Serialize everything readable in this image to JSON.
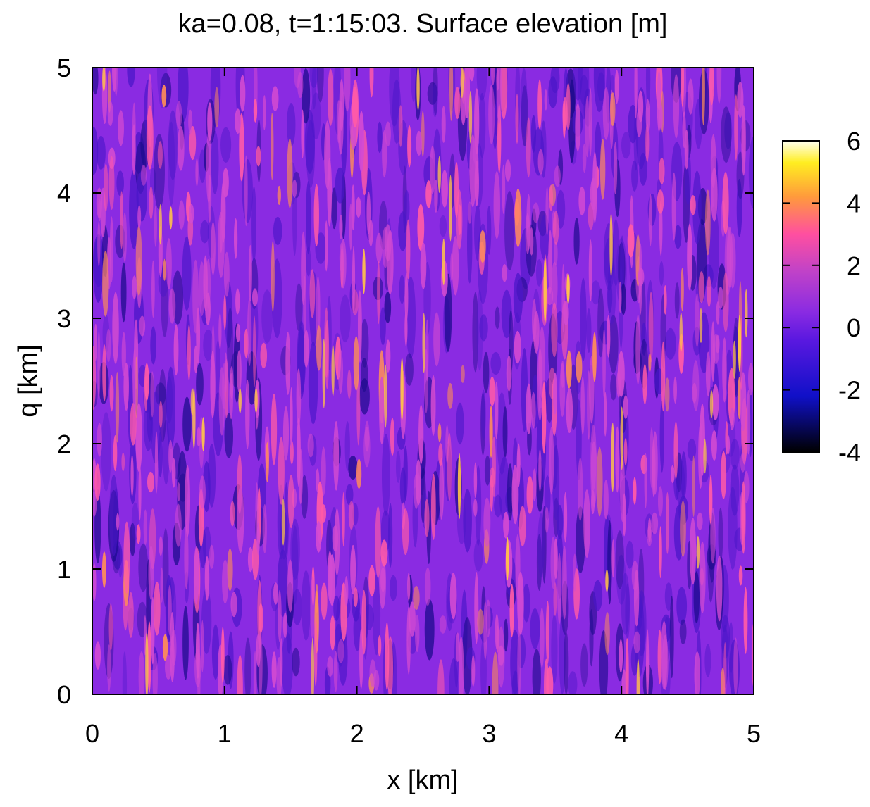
{
  "chart_data": {
    "type": "heatmap",
    "title": "ka=0.08, t=1:15:03. Surface elevation [m]",
    "xlabel": "x  [km]",
    "ylabel": "q  [km]",
    "xlim": [
      0,
      5
    ],
    "ylim": [
      0,
      5
    ],
    "x_ticks": [
      "0",
      "1",
      "2",
      "3",
      "4",
      "5"
    ],
    "y_ticks": [
      "0",
      "1",
      "2",
      "3",
      "4",
      "5"
    ],
    "colorbar": {
      "range": [
        -4,
        6
      ],
      "ticks": [
        "-4",
        "-2",
        "0",
        "2",
        "4",
        "6"
      ],
      "colormap": [
        "#000000",
        "#0000ff",
        "#8a2be2",
        "#ff3da0",
        "#ffa500",
        "#ffff00",
        "#ffffff"
      ]
    },
    "field_description": "Fine-scale crest-like streaks elongated along the q direction, mostly magenta/purple (~0 m), with sparse bright pink-yellow crests (up to ~5 m) and dark troughs (down to ~-3 m)",
    "background_color": "#8a2be2"
  }
}
